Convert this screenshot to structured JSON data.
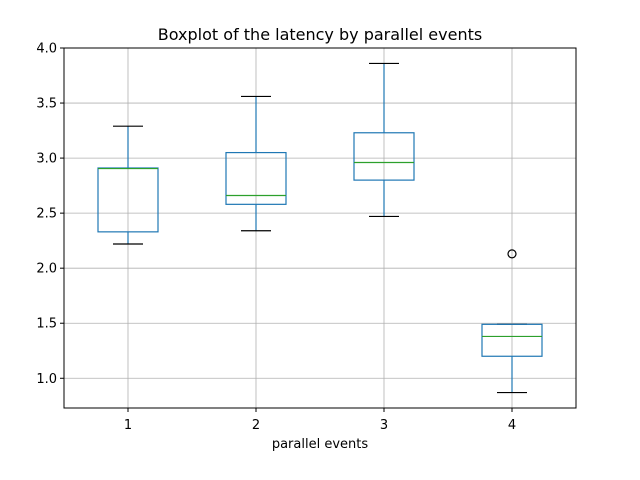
{
  "chart_data": {
    "type": "boxplot",
    "title": "Boxplot of the latency by parallel events",
    "xlabel": "parallel events",
    "ylabel": "",
    "categories": [
      "1",
      "2",
      "3",
      "4"
    ],
    "ylim": [
      0.73,
      4.0
    ],
    "yticks": [
      "1.0",
      "1.5",
      "2.0",
      "2.5",
      "3.0",
      "3.5",
      "4.0"
    ],
    "grid": true,
    "boxes": [
      {
        "category": "1",
        "whisker_low": 2.22,
        "q1": 2.33,
        "median": 2.905,
        "q3": 2.91,
        "whisker_high": 3.29,
        "outliers": []
      },
      {
        "category": "2",
        "whisker_low": 2.34,
        "q1": 2.58,
        "median": 2.66,
        "q3": 3.05,
        "whisker_high": 3.56,
        "outliers": []
      },
      {
        "category": "3",
        "whisker_low": 2.47,
        "q1": 2.8,
        "median": 2.96,
        "q3": 3.23,
        "whisker_high": 3.86,
        "outliers": []
      },
      {
        "category": "4",
        "whisker_low": 0.87,
        "q1": 1.2,
        "median": 1.38,
        "q3": 1.49,
        "whisker_high": 1.49,
        "outliers": [
          2.13
        ]
      }
    ],
    "colors": {
      "box": "#1f77b4",
      "median": "#2ca02c",
      "cap": "#000000",
      "grid": "#b0b0b0",
      "outlier": "#000000"
    }
  }
}
